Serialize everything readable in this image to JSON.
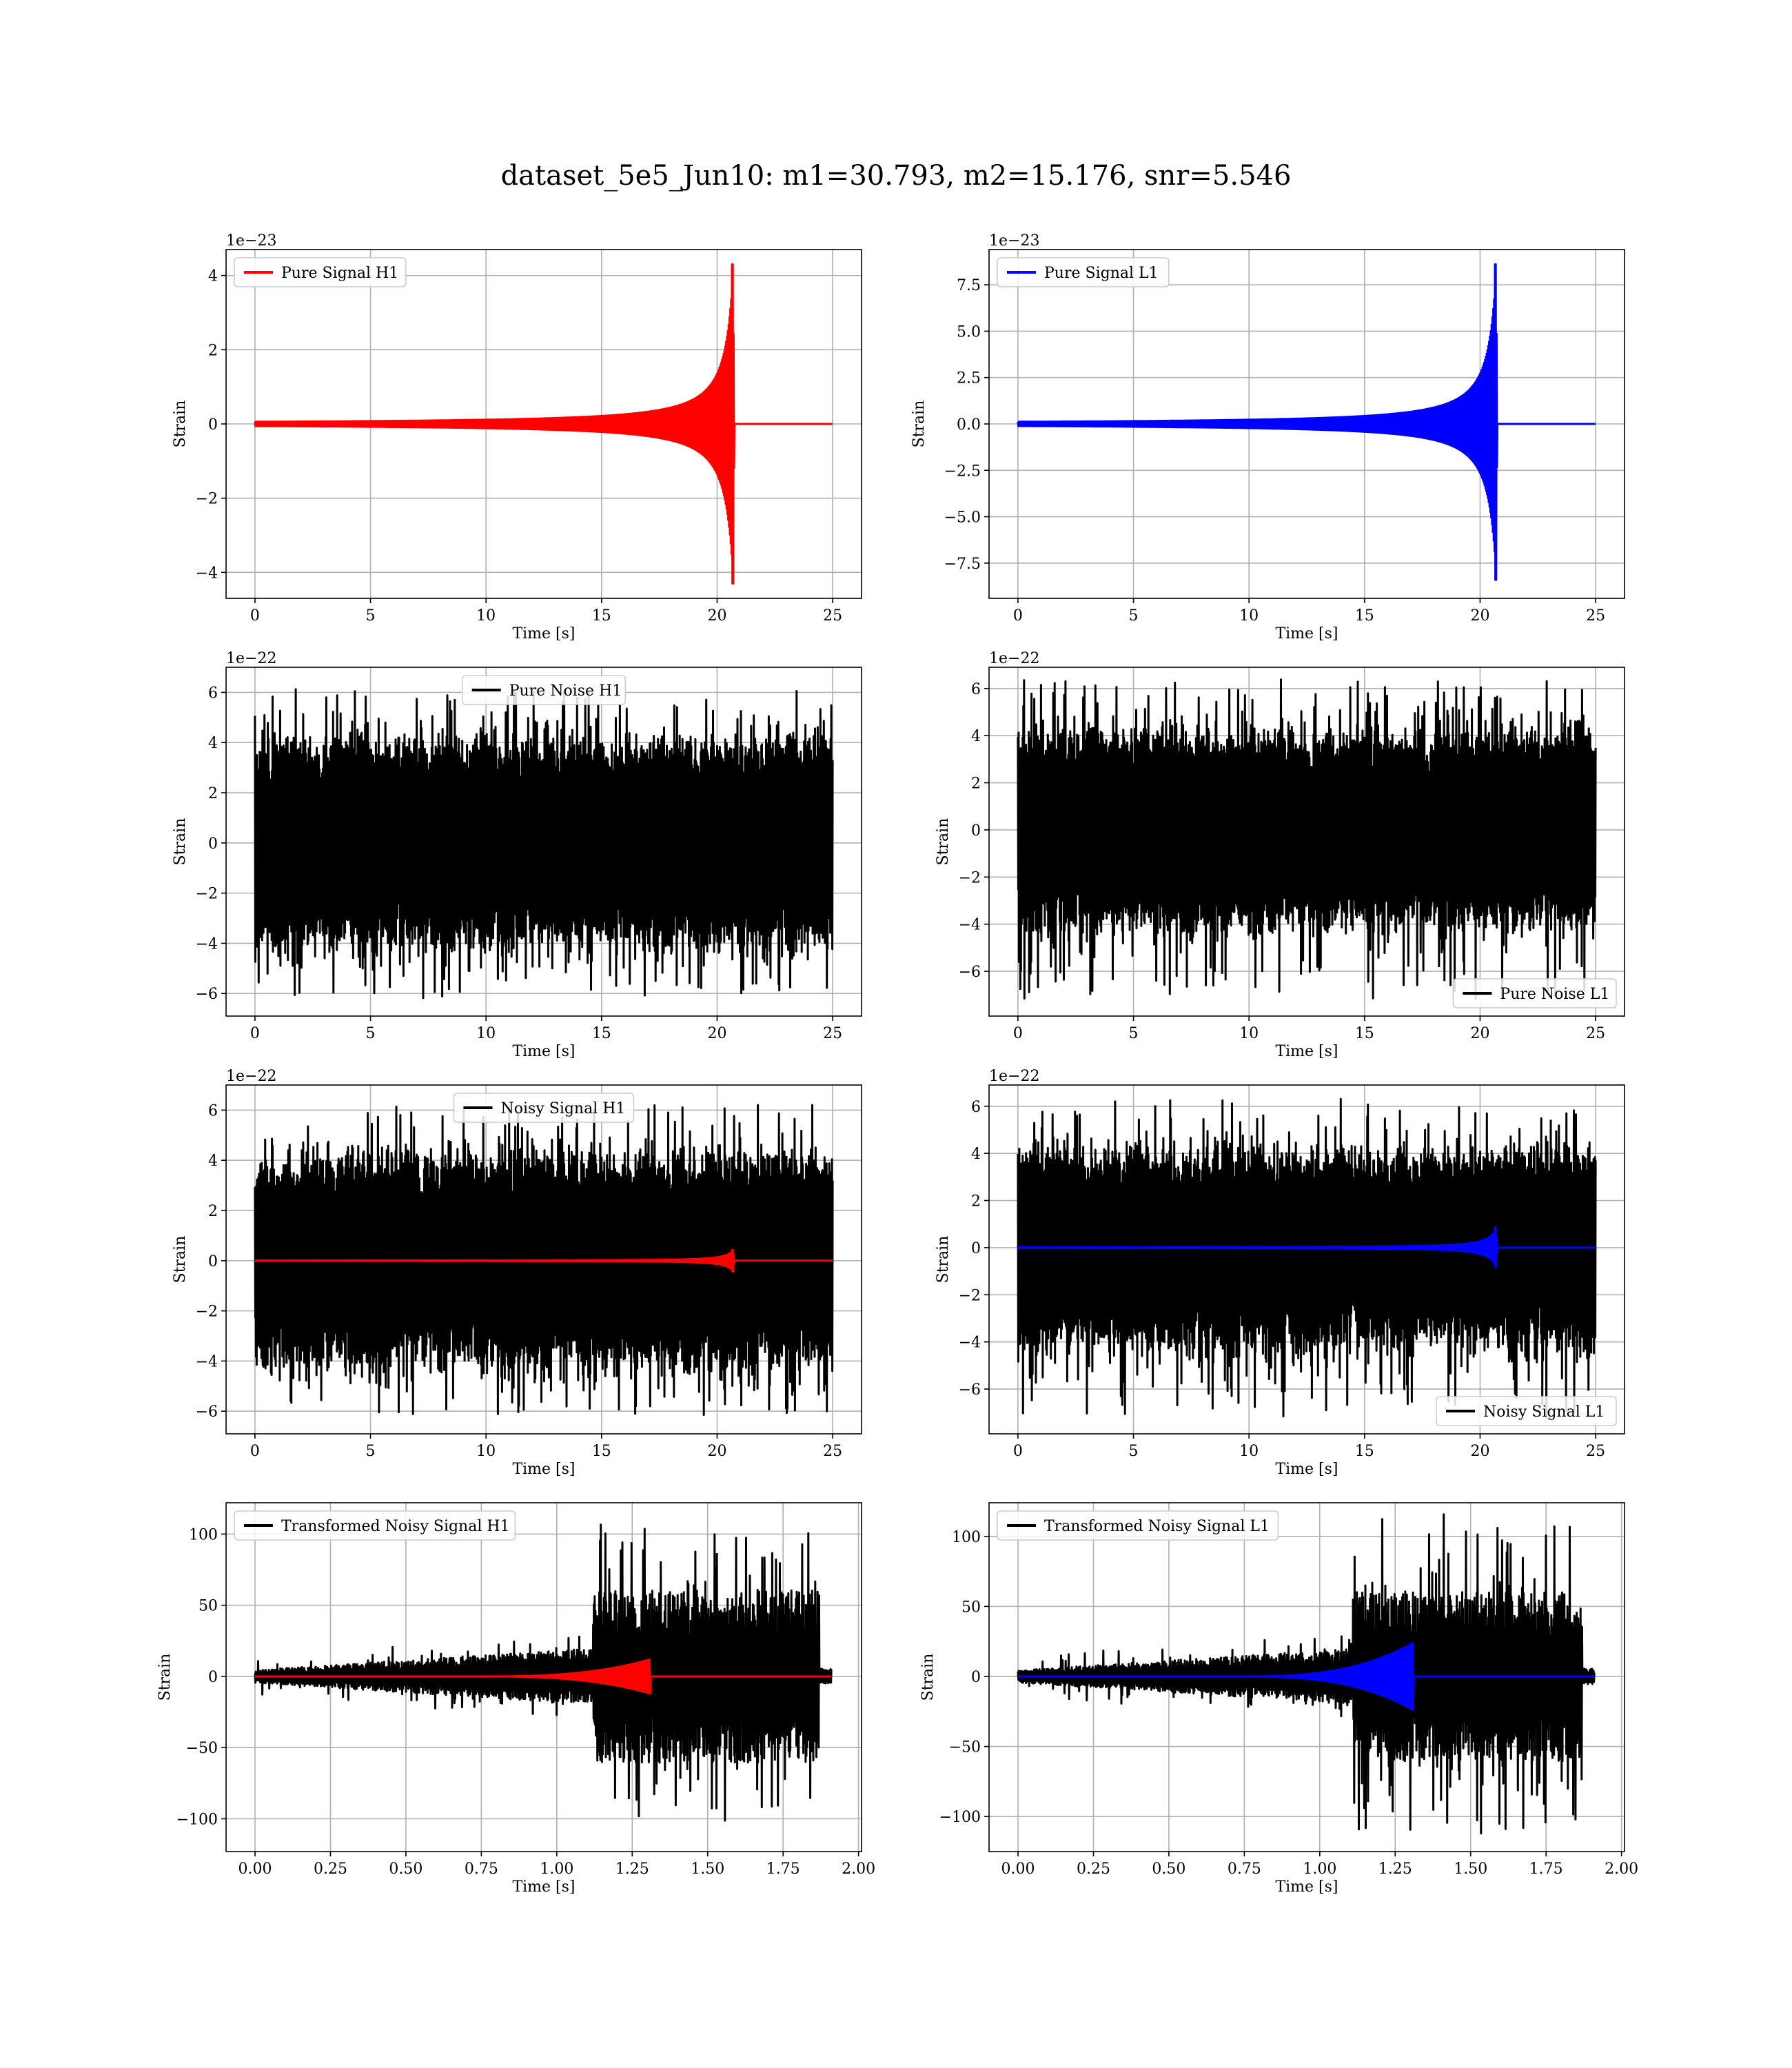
{
  "suptitle": "dataset_5e5_Jun10: m1=30.793, m2=15.176, snr=5.546",
  "colors": {
    "h1": "#ff0000",
    "l1": "#0000ff",
    "noise": "#000000"
  },
  "chart_data": [
    {
      "id": "pure-signal-h1",
      "type": "line",
      "xlabel": "Time [s]",
      "ylabel": "Strain",
      "offset_label": "1e−23",
      "xlim": [
        -1.25,
        26.25
      ],
      "ylim": [
        -4.7,
        4.7
      ],
      "xticks": [
        0,
        5,
        10,
        15,
        20,
        25
      ],
      "xtick_labels": [
        "0",
        "5",
        "10",
        "15",
        "20",
        "25"
      ],
      "yticks": [
        -4,
        -2,
        0,
        2,
        4
      ],
      "ytick_labels": [
        "−4",
        "−2",
        "0",
        "2",
        "4"
      ],
      "grid": true,
      "legend_position": "upper-left",
      "series": [
        {
          "name": "Pure Signal H1",
          "color": "#ff0000",
          "kind": "chirp",
          "x_start": 0,
          "x_end": 25,
          "t_merger": 20.7,
          "peak": 4.3,
          "trough": -4.3
        }
      ]
    },
    {
      "id": "pure-signal-l1",
      "type": "line",
      "xlabel": "Time [s]",
      "ylabel": "Strain",
      "offset_label": "1e−23",
      "xlim": [
        -1.25,
        26.25
      ],
      "ylim": [
        -9.4,
        9.4
      ],
      "xticks": [
        0,
        5,
        10,
        15,
        20,
        25
      ],
      "xtick_labels": [
        "0",
        "5",
        "10",
        "15",
        "20",
        "25"
      ],
      "yticks": [
        -7.5,
        -5.0,
        -2.5,
        0.0,
        2.5,
        5.0,
        7.5
      ],
      "ytick_labels": [
        "−7.5",
        "−5.0",
        "−2.5",
        "0.0",
        "2.5",
        "5.0",
        "7.5"
      ],
      "grid": true,
      "legend_position": "upper-left",
      "series": [
        {
          "name": "Pure Signal L1",
          "color": "#0000ff",
          "kind": "chirp",
          "x_start": 0,
          "x_end": 25,
          "t_merger": 20.7,
          "peak": 8.6,
          "trough": -8.4
        }
      ]
    },
    {
      "id": "pure-noise-h1",
      "type": "line",
      "xlabel": "Time [s]",
      "ylabel": "Strain",
      "offset_label": "1e−22",
      "xlim": [
        -1.25,
        26.25
      ],
      "ylim": [
        -6.9,
        7.0
      ],
      "xticks": [
        0,
        5,
        10,
        15,
        20,
        25
      ],
      "xtick_labels": [
        "0",
        "5",
        "10",
        "15",
        "20",
        "25"
      ],
      "yticks": [
        -6,
        -4,
        -2,
        0,
        2,
        4,
        6
      ],
      "ytick_labels": [
        "−6",
        "−4",
        "−2",
        "0",
        "2",
        "4",
        "6"
      ],
      "grid": true,
      "legend_position": "upper-center",
      "series": [
        {
          "name": "Pure Noise H1",
          "color": "#000000",
          "kind": "noise",
          "x_start": 0,
          "x_end": 25,
          "band_max": 3.3,
          "band_min": -3.3,
          "max": 6.2,
          "min": -6.2
        }
      ]
    },
    {
      "id": "pure-noise-l1",
      "type": "line",
      "xlabel": "Time [s]",
      "ylabel": "Strain",
      "offset_label": "1e−22",
      "xlim": [
        -1.25,
        26.25
      ],
      "ylim": [
        -7.9,
        6.9
      ],
      "xticks": [
        0,
        5,
        10,
        15,
        20,
        25
      ],
      "xtick_labels": [
        "0",
        "5",
        "10",
        "15",
        "20",
        "25"
      ],
      "yticks": [
        -6,
        -4,
        -2,
        0,
        2,
        4,
        6
      ],
      "ytick_labels": [
        "−6",
        "−4",
        "−2",
        "0",
        "2",
        "4",
        "6"
      ],
      "grid": true,
      "legend_position": "lower-right",
      "series": [
        {
          "name": "Pure Noise L1",
          "color": "#000000",
          "kind": "noise",
          "x_start": 0,
          "x_end": 25,
          "band_max": 3.3,
          "band_min": -3.3,
          "max": 6.4,
          "min": -7.2
        }
      ]
    },
    {
      "id": "noisy-signal-h1",
      "type": "line",
      "xlabel": "Time [s]",
      "ylabel": "Strain",
      "offset_label": "1e−22",
      "xlim": [
        -1.25,
        26.25
      ],
      "ylim": [
        -6.9,
        7.0
      ],
      "xticks": [
        0,
        5,
        10,
        15,
        20,
        25
      ],
      "xtick_labels": [
        "0",
        "5",
        "10",
        "15",
        "20",
        "25"
      ],
      "yticks": [
        -6,
        -4,
        -2,
        0,
        2,
        4,
        6
      ],
      "ytick_labels": [
        "−6",
        "−4",
        "−2",
        "0",
        "2",
        "4",
        "6"
      ],
      "grid": true,
      "legend_position": "upper-center",
      "series": [
        {
          "name": "Noisy Signal H1",
          "color": "#000000",
          "kind": "noise",
          "x_start": 0,
          "x_end": 25,
          "band_max": 3.3,
          "band_min": -3.3,
          "max": 6.2,
          "min": -6.2
        },
        {
          "color": "#ff0000",
          "kind": "chirp",
          "x_start": 0,
          "x_end": 25,
          "t_merger": 20.7,
          "peak": 0.43,
          "trough": -0.43
        }
      ]
    },
    {
      "id": "noisy-signal-l1",
      "type": "line",
      "xlabel": "Time [s]",
      "ylabel": "Strain",
      "offset_label": "1e−22",
      "xlim": [
        -1.25,
        26.25
      ],
      "ylim": [
        -7.9,
        6.9
      ],
      "xticks": [
        0,
        5,
        10,
        15,
        20,
        25
      ],
      "xtick_labels": [
        "0",
        "5",
        "10",
        "15",
        "20",
        "25"
      ],
      "yticks": [
        -6,
        -4,
        -2,
        0,
        2,
        4,
        6
      ],
      "ytick_labels": [
        "−6",
        "−4",
        "−2",
        "0",
        "2",
        "4",
        "6"
      ],
      "grid": true,
      "legend_position": "lower-right",
      "series": [
        {
          "name": "Noisy Signal L1",
          "color": "#000000",
          "kind": "noise",
          "x_start": 0,
          "x_end": 25,
          "band_max": 3.3,
          "band_min": -3.3,
          "max": 6.4,
          "min": -7.2
        },
        {
          "color": "#0000ff",
          "kind": "chirp",
          "x_start": 0,
          "x_end": 25,
          "t_merger": 20.7,
          "peak": 0.86,
          "trough": -0.84
        }
      ]
    },
    {
      "id": "transformed-noisy-signal-h1",
      "type": "line",
      "xlabel": "Time [s]",
      "ylabel": "Strain",
      "offset_label": "",
      "xlim": [
        -0.096,
        2.01
      ],
      "ylim": [
        -123,
        122
      ],
      "xticks": [
        0,
        0.25,
        0.5,
        0.75,
        1.0,
        1.25,
        1.5,
        1.75,
        2.0
      ],
      "xtick_labels": [
        "0.00",
        "0.25",
        "0.50",
        "0.75",
        "1.00",
        "1.25",
        "1.50",
        "1.75",
        "2.00"
      ],
      "yticks": [
        -100,
        -50,
        0,
        50,
        100
      ],
      "ytick_labels": [
        "−100",
        "−50",
        "0",
        "50",
        "100"
      ],
      "grid": true,
      "legend_position": "upper-left",
      "series": [
        {
          "name": "Transformed Noisy Signal H1",
          "color": "#000000",
          "kind": "tnoise",
          "x_start": 0,
          "x_end": 1.91,
          "step_time": 1.12,
          "end_time": 1.87,
          "max": 111,
          "min": -107
        },
        {
          "color": "#ff0000",
          "kind": "tchirp",
          "x_start": 0,
          "x_end": 1.91,
          "t_merger": 1.31,
          "peak": 12,
          "trough": -12
        }
      ]
    },
    {
      "id": "transformed-noisy-signal-l1",
      "type": "line",
      "xlabel": "Time [s]",
      "ylabel": "Strain",
      "offset_label": "",
      "xlim": [
        -0.096,
        2.01
      ],
      "ylim": [
        -125,
        124
      ],
      "xticks": [
        0,
        0.25,
        0.5,
        0.75,
        1.0,
        1.25,
        1.5,
        1.75,
        2.0
      ],
      "xtick_labels": [
        "0.00",
        "0.25",
        "0.50",
        "0.75",
        "1.00",
        "1.25",
        "1.50",
        "1.75",
        "2.00"
      ],
      "yticks": [
        -100,
        -50,
        0,
        50,
        100
      ],
      "ytick_labels": [
        "−100",
        "−50",
        "0",
        "50",
        "100"
      ],
      "grid": true,
      "legend_position": "upper-left",
      "series": [
        {
          "name": "Transformed Noisy Signal L1",
          "color": "#000000",
          "kind": "tnoise",
          "x_start": 0,
          "x_end": 1.91,
          "step_time": 1.11,
          "end_time": 1.87,
          "max": 116,
          "min": -112
        },
        {
          "color": "#0000ff",
          "kind": "tchirp",
          "x_start": 0,
          "x_end": 1.91,
          "t_merger": 1.31,
          "peak": 24,
          "trough": -24
        }
      ]
    }
  ]
}
